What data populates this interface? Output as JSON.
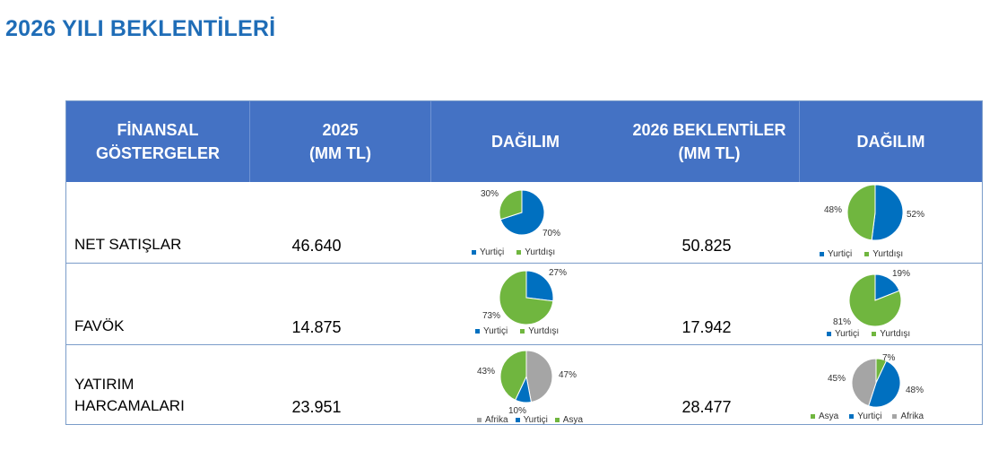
{
  "page": {
    "title": "2026 YILI BEKLENTİLERİ"
  },
  "colors": {
    "header_bg": "#4472c4",
    "title": "#1f6db7",
    "yurtici": "#0070c0",
    "yurtdisi": "#70b63f",
    "afrika": "#a5a5a5"
  },
  "table": {
    "headers": {
      "indicators": "FİNANSAL\nGÖSTERGELER",
      "y2025": "2025\n(MM TL)",
      "dist2025": "DAĞILIM",
      "y2026": "2026 BEKLENTİLER\n(MM TL)",
      "dist2026": "DAĞILIM"
    },
    "rows": [
      {
        "label": "NET SATIŞLAR",
        "v2025": "46.640",
        "v2026": "50.825",
        "pie2025": {
          "slices": [
            {
              "name": "Yurtiçi",
              "value": 70,
              "label": "70%"
            },
            {
              "name": "Yurtdışı",
              "value": 30,
              "label": "30%"
            }
          ],
          "legend": [
            "Yurtiçi",
            "Yurtdışı"
          ]
        },
        "pie2026": {
          "slices": [
            {
              "name": "Yurtiçi",
              "value": 52,
              "label": "52%"
            },
            {
              "name": "Yurtdışı",
              "value": 48,
              "label": "48%"
            }
          ],
          "legend": [
            "Yurtiçi",
            "Yurtdışı"
          ]
        }
      },
      {
        "label": "FAVÖK",
        "v2025": "14.875",
        "v2026": "17.942",
        "pie2025": {
          "slices": [
            {
              "name": "Yurtiçi",
              "value": 27,
              "label": "27%"
            },
            {
              "name": "Yurtdışı",
              "value": 73,
              "label": "73%"
            }
          ],
          "legend": [
            "Yurtiçi",
            "Yurtdışı"
          ]
        },
        "pie2026": {
          "slices": [
            {
              "name": "Yurtiçi",
              "value": 19,
              "label": "19%"
            },
            {
              "name": "Yurtdışı",
              "value": 81,
              "label": "81%"
            }
          ],
          "legend": [
            "Yurtiçi",
            "Yurtdışı"
          ]
        }
      },
      {
        "label": "YATIRIM\nHARCAMALARI",
        "v2025": "23.951",
        "v2026": "28.477",
        "pie2025": {
          "slices": [
            {
              "name": "Afrika",
              "value": 47,
              "label": "47%"
            },
            {
              "name": "Yurtiçi",
              "value": 10,
              "label": "10%"
            },
            {
              "name": "Asya",
              "value": 43,
              "label": "43%"
            }
          ],
          "legend": [
            "Afrika",
            "Yurtiçi",
            "Asya"
          ]
        },
        "pie2026": {
          "slices": [
            {
              "name": "Asya",
              "value": 7,
              "label": "7%"
            },
            {
              "name": "Yurtiçi",
              "value": 48,
              "label": "48%"
            },
            {
              "name": "Afrika",
              "value": 45,
              "label": "45%"
            }
          ],
          "legend": [
            "Asya",
            "Yurtiçi",
            "Afrika"
          ]
        }
      }
    ]
  }
}
